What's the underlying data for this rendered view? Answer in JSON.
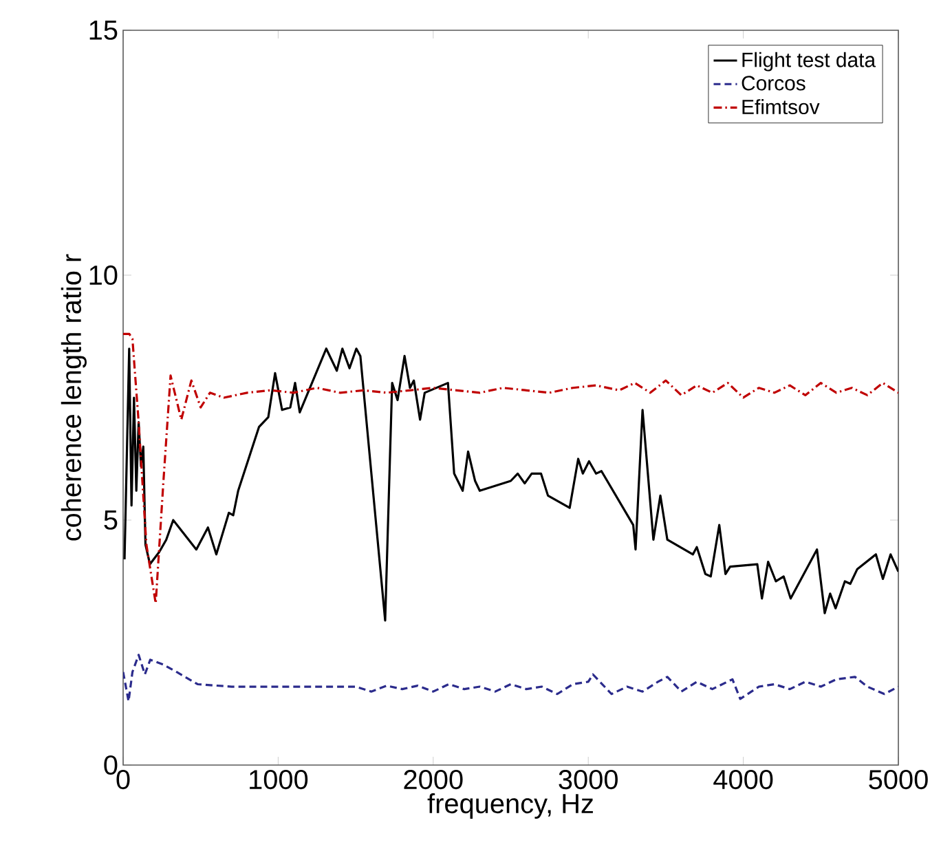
{
  "chart_data": {
    "type": "line",
    "xlabel": "frequency, Hz",
    "ylabel": "coherence length ratio r",
    "xlim": [
      0,
      5000
    ],
    "ylim": [
      0,
      15
    ],
    "xticks": [
      0,
      1000,
      2000,
      3000,
      4000,
      5000
    ],
    "yticks": [
      0,
      5,
      10,
      15
    ],
    "grid": false,
    "legend": "top right",
    "marker": "none",
    "series": [
      {
        "name": "Flight test data",
        "color": "#000000",
        "line_style": "solid",
        "x": [
          9,
          39,
          54,
          70,
          85,
          100,
          115,
          130,
          144,
          173,
          233,
          278,
          323,
          472,
          547,
          601,
          682,
          710,
          742,
          876,
          936,
          980,
          1025,
          1078,
          1109,
          1139,
          1310,
          1378,
          1414,
          1460,
          1504,
          1530,
          1690,
          1735,
          1770,
          1815,
          1850,
          1875,
          1915,
          1945,
          2095,
          2135,
          2190,
          2225,
          2270,
          2300,
          2500,
          2545,
          2590,
          2635,
          2695,
          2740,
          2880,
          2935,
          2965,
          3005,
          3050,
          3085,
          3290,
          3305,
          3350,
          3420,
          3465,
          3510,
          3675,
          3700,
          3755,
          3790,
          3845,
          3885,
          3915,
          4090,
          4120,
          4160,
          4210,
          4260,
          4305,
          4475,
          4525,
          4560,
          4595,
          4655,
          4690,
          4735,
          4855,
          4900,
          4950,
          5000
        ],
        "values": [
          4.2,
          8.5,
          5.3,
          7.5,
          5.6,
          7.0,
          6.1,
          6.5,
          4.5,
          4.1,
          4.35,
          4.6,
          5.0,
          4.4,
          4.85,
          4.3,
          5.15,
          5.1,
          5.6,
          6.9,
          7.1,
          8.0,
          7.25,
          7.3,
          7.8,
          7.2,
          8.5,
          8.05,
          8.5,
          8.1,
          8.5,
          8.35,
          2.95,
          7.8,
          7.45,
          8.35,
          7.7,
          7.85,
          7.05,
          7.6,
          7.8,
          5.95,
          5.6,
          6.4,
          5.8,
          5.6,
          5.8,
          5.95,
          5.75,
          5.95,
          5.95,
          5.5,
          5.25,
          6.25,
          5.95,
          6.2,
          5.95,
          6.0,
          4.9,
          4.4,
          7.25,
          4.6,
          5.5,
          4.6,
          4.3,
          4.45,
          3.9,
          3.85,
          4.9,
          3.9,
          4.05,
          4.1,
          3.4,
          4.15,
          3.75,
          3.85,
          3.4,
          4.4,
          3.1,
          3.5,
          3.2,
          3.75,
          3.7,
          4.0,
          4.3,
          3.8,
          4.3,
          3.95
        ]
      },
      {
        "name": "Corcos",
        "color": "#2b2b8c",
        "line_style": "dashed",
        "x": [
          0,
          35,
          60,
          100,
          140,
          175,
          260,
          345,
          480,
          700,
          1000,
          1300,
          1500,
          1600,
          1700,
          1800,
          1900,
          2000,
          2100,
          2200,
          2300,
          2400,
          2500,
          2600,
          2700,
          2800,
          2900,
          3000,
          3030,
          3150,
          3250,
          3350,
          3450,
          3510,
          3600,
          3700,
          3800,
          3930,
          3980,
          4100,
          4200,
          4300,
          4400,
          4500,
          4600,
          4720,
          4800,
          4910,
          5000
        ],
        "values": [
          1.9,
          1.3,
          1.9,
          2.25,
          1.85,
          2.15,
          2.05,
          1.9,
          1.65,
          1.6,
          1.6,
          1.6,
          1.6,
          1.5,
          1.62,
          1.55,
          1.62,
          1.5,
          1.65,
          1.55,
          1.6,
          1.5,
          1.65,
          1.55,
          1.6,
          1.45,
          1.65,
          1.7,
          1.85,
          1.45,
          1.6,
          1.5,
          1.7,
          1.8,
          1.5,
          1.7,
          1.55,
          1.75,
          1.35,
          1.6,
          1.65,
          1.55,
          1.7,
          1.6,
          1.75,
          1.8,
          1.6,
          1.45,
          1.6
        ]
      },
      {
        "name": "Efimtsov",
        "color": "#c00000",
        "line_style": "dashdot",
        "x": [
          0,
          40,
          60,
          100,
          150,
          210,
          260,
          306,
          375,
          440,
          500,
          560,
          650,
          800,
          950,
          1100,
          1250,
          1400,
          1550,
          1700,
          1850,
          2000,
          2150,
          2300,
          2450,
          2600,
          2750,
          2900,
          3050,
          3200,
          3300,
          3400,
          3500,
          3600,
          3700,
          3800,
          3900,
          4000,
          4100,
          4200,
          4300,
          4400,
          4500,
          4600,
          4700,
          4800,
          4900,
          5000
        ],
        "values": [
          8.8,
          8.8,
          8.7,
          7.0,
          4.5,
          3.3,
          5.8,
          7.95,
          7.05,
          7.85,
          7.3,
          7.6,
          7.5,
          7.6,
          7.65,
          7.6,
          7.7,
          7.6,
          7.65,
          7.6,
          7.65,
          7.7,
          7.65,
          7.6,
          7.7,
          7.65,
          7.6,
          7.7,
          7.75,
          7.65,
          7.8,
          7.6,
          7.85,
          7.55,
          7.75,
          7.6,
          7.8,
          7.5,
          7.7,
          7.6,
          7.75,
          7.55,
          7.8,
          7.6,
          7.7,
          7.55,
          7.8,
          7.6
        ]
      }
    ]
  }
}
